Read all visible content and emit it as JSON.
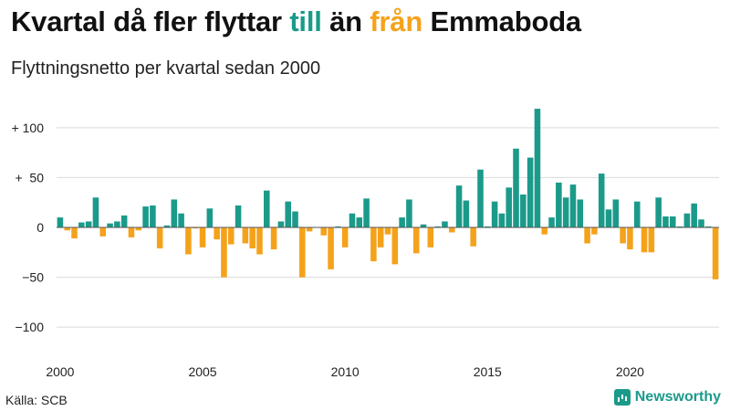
{
  "title": {
    "part1": "Kvartal då fler flyttar ",
    "till": "till",
    "part2": " än ",
    "fran": "från",
    "part3": " Emmaboda"
  },
  "subtitle": "Flyttningsnetto per kvartal sedan 2000",
  "source": "Källa: SCB",
  "brand": {
    "name": "Newsworthy",
    "icon": "bar-chart-icon"
  },
  "colors": {
    "positive": "#1b9a8a",
    "negative": "#f5a21b",
    "grid": "#d9d9d9"
  },
  "chart_data": {
    "type": "bar",
    "title": "Kvartal då fler flyttar till än från Emmaboda",
    "subtitle": "Flyttningsnetto per kvartal sedan 2000",
    "x_start": "2000 Q1",
    "x_tick_labels": [
      "2000",
      "2005",
      "2010",
      "2015",
      "2020"
    ],
    "y_tick_values": [
      100,
      50,
      0,
      -50,
      -100
    ],
    "y_tick_labels": [
      "+ 100",
      "+  50",
      "0",
      "−50",
      "−100"
    ],
    "ylim": [
      -120,
      120
    ],
    "grid": true,
    "values": [
      10,
      -3,
      -11,
      5,
      6,
      30,
      -9,
      4,
      6,
      12,
      -10,
      -3,
      21,
      22,
      -21,
      2,
      28,
      14,
      -27,
      -1,
      -20,
      19,
      -12,
      -50,
      -17,
      22,
      -16,
      -21,
      -27,
      37,
      -22,
      6,
      26,
      16,
      -50,
      -4,
      0,
      -8,
      -42,
      1,
      -20,
      14,
      10,
      29,
      -34,
      -20,
      -7,
      -37,
      10,
      28,
      -26,
      3,
      -20,
      1,
      6,
      -5,
      42,
      27,
      -19,
      58,
      1,
      26,
      14,
      40,
      79,
      33,
      70,
      119,
      -7,
      10,
      45,
      30,
      43,
      28,
      -16,
      -7,
      54,
      18,
      28,
      -16,
      -22,
      26,
      -25,
      -25,
      30,
      11,
      11,
      1,
      14,
      24,
      8,
      1,
      -52
    ]
  }
}
